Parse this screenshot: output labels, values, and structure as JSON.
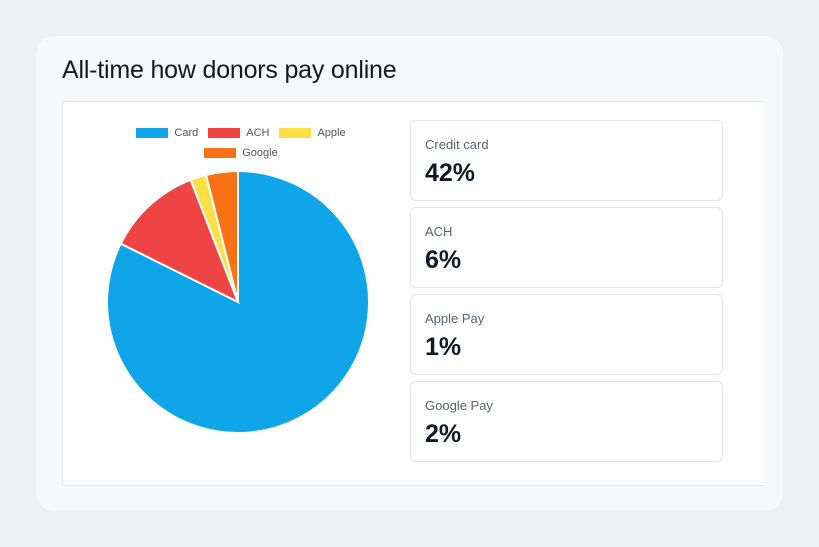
{
  "title": "All-time how donors pay online",
  "chart_data": {
    "type": "pie",
    "categories": [
      "Card",
      "ACH",
      "Apple",
      "Google"
    ],
    "values": [
      42,
      6,
      1,
      2
    ],
    "colors": [
      "#0ea5e9",
      "#ef4444",
      "#fde047",
      "#f97316"
    ],
    "legend_position": "top"
  },
  "stats": [
    {
      "label": "Credit card",
      "value": "42%"
    },
    {
      "label": "ACH",
      "value": "6%"
    },
    {
      "label": "Apple Pay",
      "value": "1%"
    },
    {
      "label": "Google Pay",
      "value": "2%"
    }
  ]
}
